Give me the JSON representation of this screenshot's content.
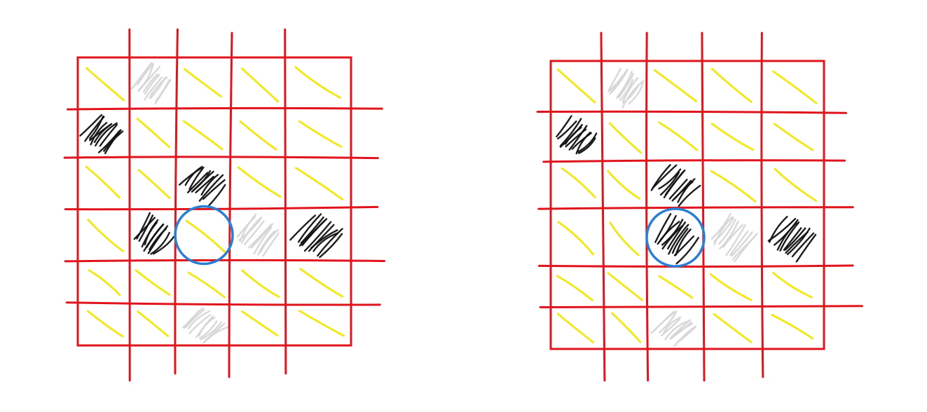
{
  "colors": {
    "grid": "#e0141c",
    "diagonal": "#f2e81c",
    "black_hatch": "#111111",
    "white_hatch": "#d6d6d6",
    "circle": "#2a7fd4",
    "background": "#ffffff"
  },
  "icons": {
    "diagonal_cell": "yellow-diagonal-stroke-icon",
    "black_cell": "black-hatch-icon",
    "white_cell": "white-hatch-icon",
    "highlight": "blue-circle-icon"
  },
  "panels": [
    {
      "id": "left",
      "rows": 6,
      "cols": 5,
      "cells": [
        [
          "y",
          "w",
          "y",
          "y",
          "y"
        ],
        [
          "b",
          "y",
          "y",
          "y",
          "y"
        ],
        [
          "y",
          "y",
          "b",
          "y",
          "y"
        ],
        [
          "y",
          "b",
          "y",
          "w",
          "b"
        ],
        [
          "y",
          "y",
          "y",
          "y",
          "y"
        ],
        [
          "y",
          "y",
          "w",
          "y",
          "y"
        ]
      ],
      "highlight": {
        "row": 3,
        "col": 2,
        "cell_content": "y"
      }
    },
    {
      "id": "right",
      "rows": 6,
      "cols": 5,
      "cells": [
        [
          "y",
          "w",
          "y",
          "y",
          "y"
        ],
        [
          "b",
          "y",
          "y",
          "y",
          "y"
        ],
        [
          "y",
          "y",
          "b",
          "y",
          "y"
        ],
        [
          "y",
          "y",
          "b",
          "w",
          "b"
        ],
        [
          "y",
          "y",
          "y",
          "y",
          "y"
        ],
        [
          "y",
          "y",
          "w",
          "y",
          "y"
        ]
      ],
      "highlight": {
        "row": 3,
        "col": 2,
        "cell_content": "b"
      }
    }
  ]
}
